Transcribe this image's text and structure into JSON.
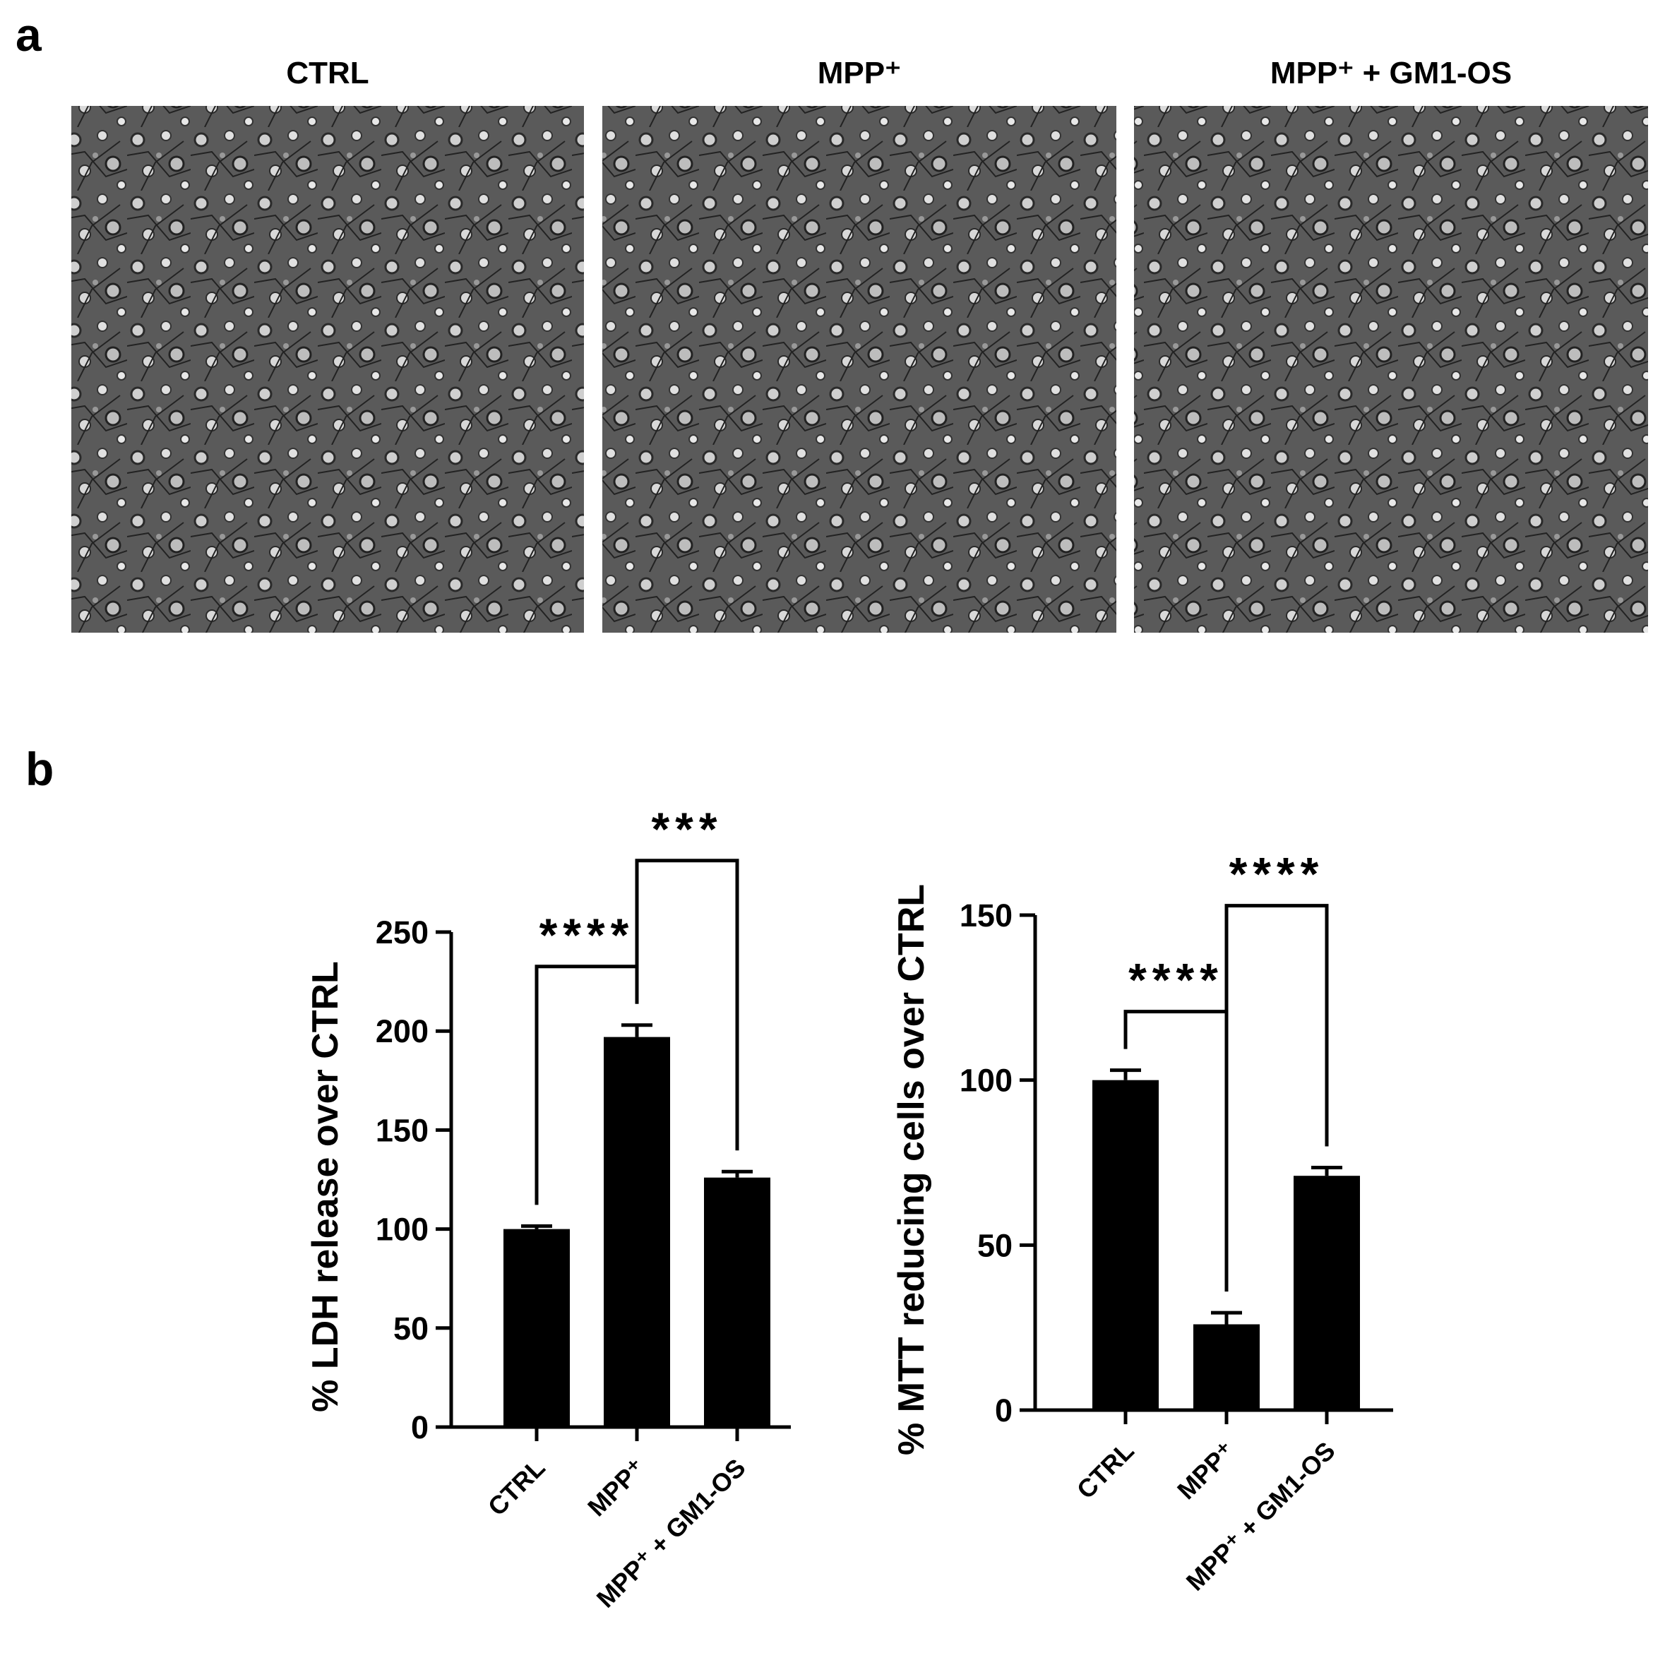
{
  "panel_a": {
    "label": "a",
    "titles": [
      "CTRL",
      "MPP⁺",
      "MPP⁺ + GM1-OS"
    ]
  },
  "panel_b": {
    "label": "b"
  },
  "chart_data": [
    {
      "type": "bar",
      "ylabel": "% LDH release over CTRL",
      "categories": [
        "CTRL",
        "MPP⁺",
        "MPP⁺ + GM1-OS"
      ],
      "values": [
        100,
        197,
        126
      ],
      "errors": [
        1.5,
        6,
        3
      ],
      "color": "#000000",
      "ylim": [
        0,
        250
      ],
      "yticks": [
        0,
        50,
        100,
        150,
        200,
        250
      ],
      "annotations": [
        "****",
        "***"
      ]
    },
    {
      "type": "bar",
      "ylabel": "% MTT reducing cells over CTRL",
      "categories": [
        "CTRL",
        "MPP⁺",
        "MPP⁺ + GM1-OS"
      ],
      "values": [
        100,
        26,
        71
      ],
      "errors": [
        3,
        3.5,
        2.5
      ],
      "color": "#000000",
      "ylim": [
        0,
        150
      ],
      "yticks": [
        0,
        50,
        100,
        150
      ],
      "annotations": [
        "****",
        "****"
      ]
    }
  ]
}
